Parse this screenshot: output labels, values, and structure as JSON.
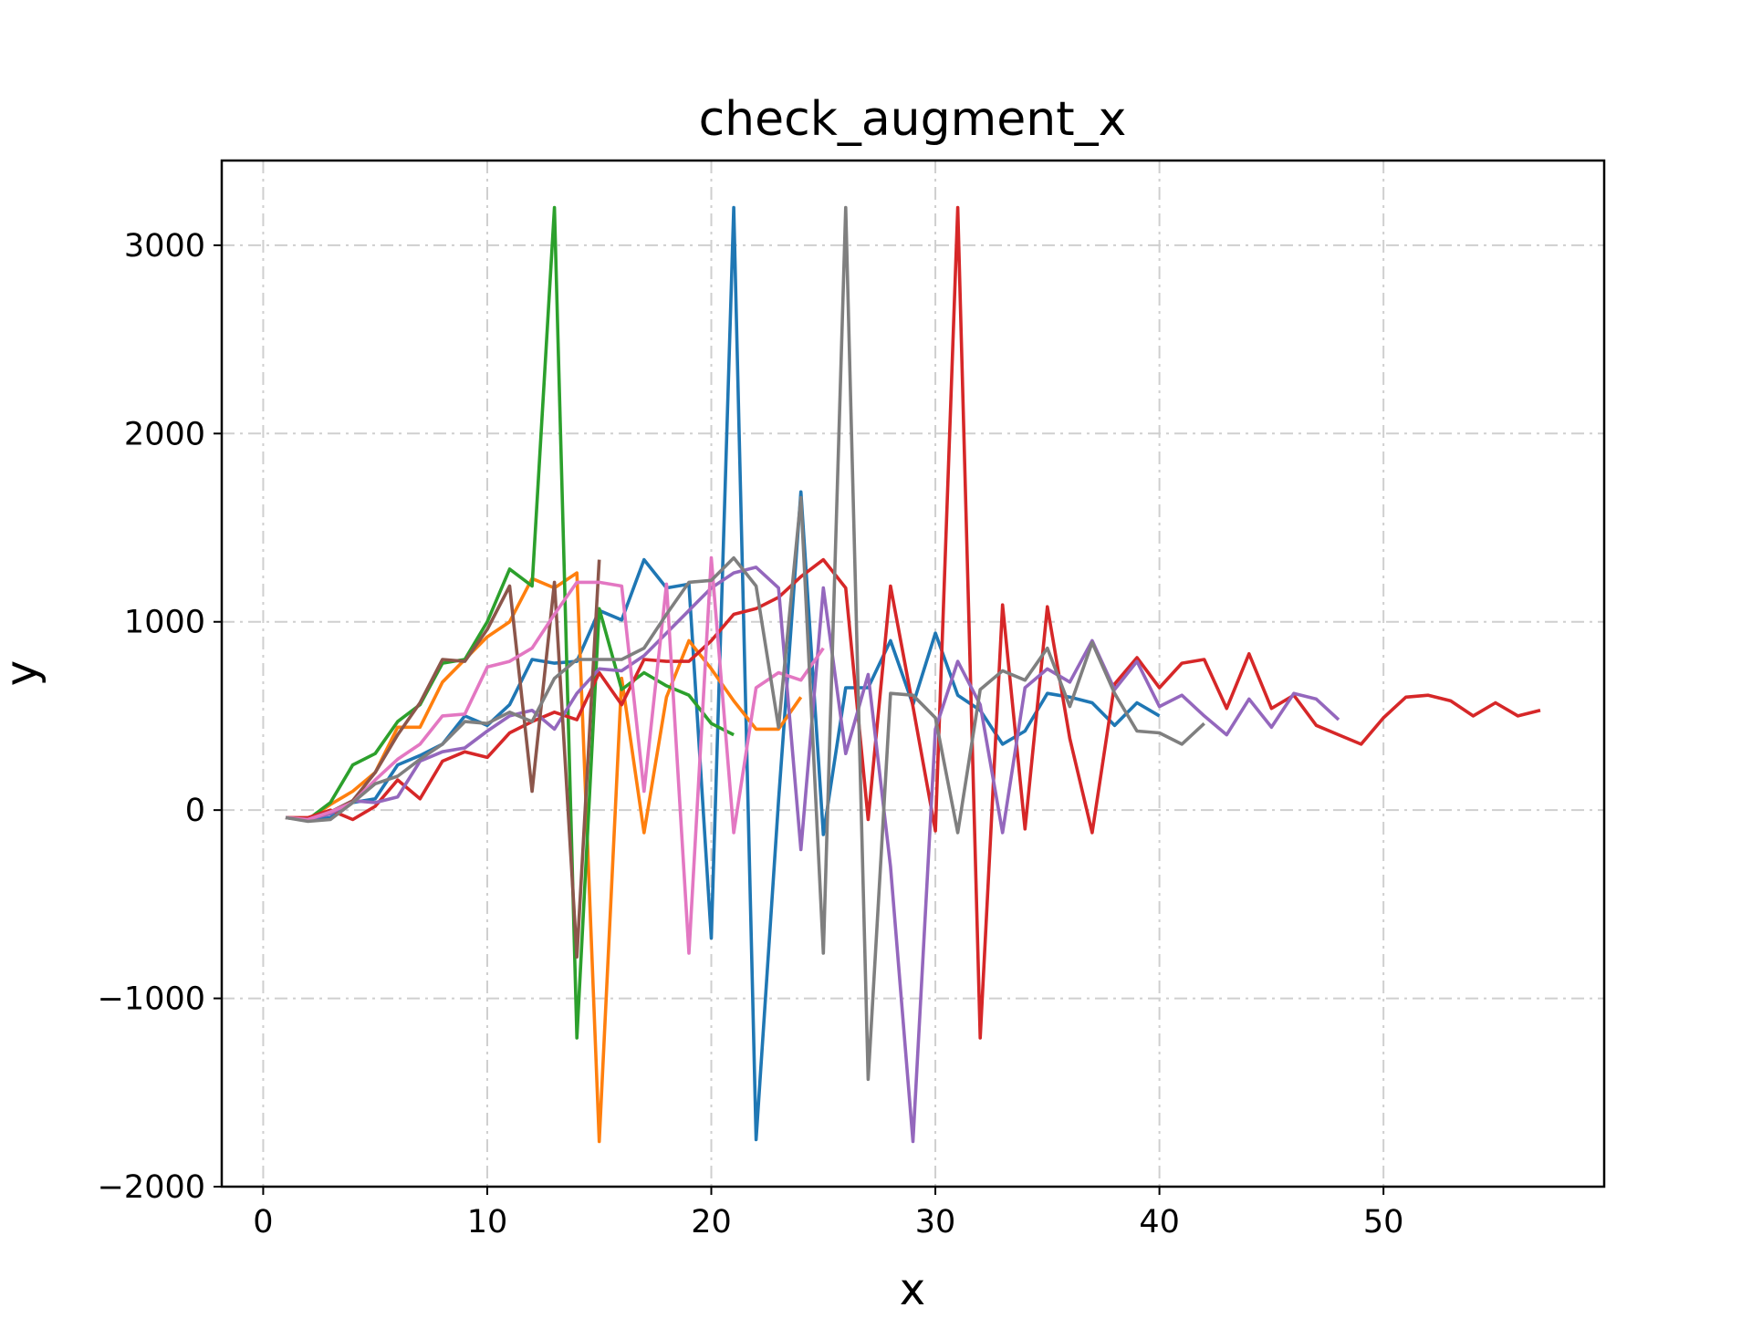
{
  "chart_data": {
    "type": "line",
    "title": "check_augment_x",
    "xlabel": "x",
    "ylabel": "y",
    "xlim": [
      -1.85,
      59.85
    ],
    "ylim": [
      -2000,
      3450
    ],
    "xticks": [
      0,
      10,
      20,
      30,
      40,
      50
    ],
    "xtick_labels": [
      "0",
      "10",
      "20",
      "30",
      "40",
      "50"
    ],
    "yticks": [
      -2000,
      -1000,
      0,
      1000,
      2000,
      3000
    ],
    "ytick_labels": [
      "−2000",
      "−1000",
      "0",
      "1000",
      "2000",
      "3000"
    ],
    "grid": true,
    "legend": "none",
    "series": [
      {
        "color": "#1f77b4",
        "x": [
          1,
          2,
          3,
          4,
          5,
          6,
          7,
          8,
          9,
          10,
          11,
          12,
          13,
          14,
          15,
          16,
          17,
          18,
          19,
          20,
          21,
          22,
          23,
          24,
          25,
          26,
          27,
          28,
          29,
          30,
          31,
          32,
          33,
          34,
          35,
          36,
          37,
          38,
          39,
          40
        ],
        "values": [
          -40,
          -55,
          -40,
          40,
          60,
          240,
          290,
          350,
          500,
          450,
          560,
          800,
          780,
          790,
          1060,
          1010,
          1330,
          1180,
          1200,
          -680,
          3200,
          -1750,
          50,
          1690,
          -130,
          650,
          650,
          900,
          560,
          940,
          610,
          530,
          350,
          420,
          620,
          600,
          570,
          450,
          570,
          500
        ]
      },
      {
        "color": "#ff7f0e",
        "x": [
          1,
          2,
          3,
          4,
          5,
          6,
          7,
          8,
          9,
          10,
          11,
          12,
          13,
          14,
          15,
          16,
          17,
          18,
          19,
          20,
          21,
          22,
          23,
          24
        ],
        "values": [
          -40,
          -50,
          30,
          100,
          200,
          440,
          440,
          680,
          800,
          920,
          1000,
          1230,
          1180,
          1260,
          -1760,
          700,
          -120,
          600,
          900,
          750,
          580,
          430,
          430,
          600
        ]
      },
      {
        "color": "#2ca02c",
        "x": [
          1,
          2,
          3,
          4,
          5,
          6,
          7,
          8,
          9,
          10,
          11,
          12,
          13,
          14,
          15,
          16,
          17,
          18,
          19,
          20,
          21
        ],
        "values": [
          -40,
          -50,
          40,
          240,
          300,
          470,
          560,
          780,
          800,
          1000,
          1280,
          1190,
          3200,
          -1210,
          1070,
          640,
          730,
          660,
          610,
          460,
          400
        ]
      },
      {
        "color": "#d62728",
        "x": [
          1,
          2,
          3,
          4,
          5,
          6,
          7,
          8,
          9,
          10,
          11,
          12,
          13,
          14,
          15,
          16,
          17,
          18,
          19,
          20,
          21,
          22,
          23,
          24,
          25,
          26,
          27,
          28,
          29,
          30,
          31,
          32,
          33,
          34,
          35,
          36,
          37,
          38,
          39,
          40,
          41,
          42,
          43,
          44,
          45,
          46,
          47,
          48,
          49,
          50,
          51,
          52,
          53,
          54,
          55,
          56,
          57
        ],
        "values": [
          -40,
          -40,
          0,
          -50,
          20,
          160,
          60,
          260,
          310,
          280,
          410,
          470,
          520,
          480,
          730,
          560,
          800,
          790,
          790,
          900,
          1040,
          1070,
          1130,
          1240,
          1330,
          1180,
          -50,
          1190,
          550,
          -110,
          3200,
          -1210,
          1090,
          -100,
          1080,
          380,
          -120,
          670,
          810,
          650,
          780,
          800,
          540,
          830,
          540,
          610,
          450,
          400,
          350,
          490,
          600,
          610,
          580,
          500,
          570,
          500,
          530
        ]
      },
      {
        "color": "#9467bd",
        "x": [
          1,
          2,
          3,
          4,
          5,
          6,
          7,
          8,
          9,
          10,
          11,
          12,
          13,
          14,
          15,
          16,
          17,
          18,
          19,
          20,
          21,
          22,
          23,
          24,
          25,
          26,
          27,
          28,
          29,
          30,
          31,
          32,
          33,
          34,
          35,
          36,
          37,
          38,
          39,
          40,
          41,
          42,
          43,
          44,
          45,
          46,
          47,
          48
        ],
        "values": [
          -40,
          -50,
          -20,
          50,
          40,
          70,
          260,
          310,
          330,
          420,
          500,
          530,
          430,
          620,
          750,
          740,
          820,
          940,
          1060,
          1180,
          1260,
          1290,
          1180,
          -210,
          1180,
          300,
          720,
          -300,
          -1760,
          430,
          790,
          560,
          -120,
          650,
          750,
          680,
          900,
          640,
          790,
          550,
          610,
          500,
          400,
          590,
          440,
          620,
          590,
          480
        ]
      },
      {
        "color": "#8c564b",
        "x": [
          1,
          2,
          3,
          4,
          5,
          6,
          7,
          8,
          9,
          10,
          11,
          12,
          13,
          14,
          15
        ],
        "values": [
          -40,
          -50,
          -10,
          50,
          200,
          400,
          570,
          800,
          790,
          960,
          1190,
          100,
          1210,
          -780,
          1330
        ]
      },
      {
        "color": "#e377c2",
        "x": [
          1,
          2,
          3,
          4,
          5,
          6,
          7,
          8,
          9,
          10,
          11,
          12,
          13,
          14,
          15,
          16,
          17,
          18,
          19,
          20,
          21,
          22,
          23,
          24,
          25
        ],
        "values": [
          -40,
          -50,
          -10,
          40,
          160,
          270,
          350,
          500,
          510,
          760,
          790,
          860,
          1040,
          1210,
          1210,
          1190,
          100,
          1200,
          -760,
          1340,
          -120,
          650,
          730,
          690,
          860
        ]
      },
      {
        "color": "#7f7f7f",
        "x": [
          1,
          2,
          3,
          4,
          5,
          6,
          7,
          8,
          9,
          10,
          11,
          12,
          13,
          14,
          15,
          16,
          17,
          18,
          19,
          20,
          21,
          22,
          23,
          24,
          25,
          26,
          27,
          28,
          29,
          30,
          31,
          32,
          33,
          34,
          35,
          36,
          37,
          38,
          39,
          40,
          41,
          42
        ],
        "values": [
          -40,
          -60,
          -50,
          40,
          140,
          180,
          270,
          350,
          470,
          460,
          520,
          470,
          700,
          800,
          800,
          800,
          860,
          1040,
          1210,
          1220,
          1340,
          1190,
          440,
          1660,
          -760,
          3200,
          -1430,
          620,
          610,
          490,
          -120,
          640,
          740,
          690,
          860,
          550,
          890,
          620,
          420,
          410,
          350,
          460
        ]
      }
    ]
  }
}
